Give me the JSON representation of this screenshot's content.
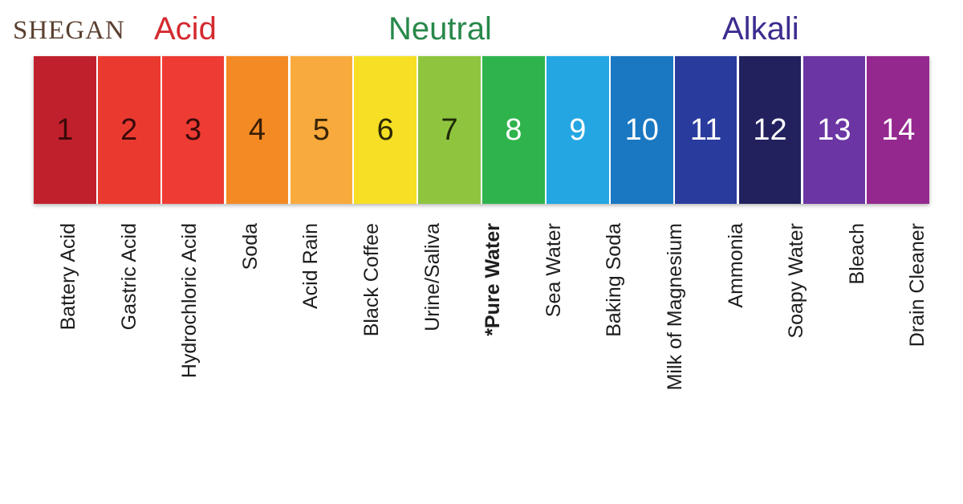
{
  "brand": {
    "name": "SHEGAN",
    "color": "#5a4030"
  },
  "headings": [
    {
      "id": "acid",
      "text": "Acid",
      "color": "#d42a2f"
    },
    {
      "id": "neutral",
      "text": "Neutral",
      "color": "#28884a"
    },
    {
      "id": "alkali",
      "text": "Alkali",
      "color": "#3b2d8f"
    }
  ],
  "scale": [
    {
      "ph": "1",
      "color": "#c0202c",
      "text_color": "#3a0a0a",
      "label": "Battery Acid",
      "emphasis": false
    },
    {
      "ph": "2",
      "color": "#ea3a30",
      "text_color": "#3a0a0a",
      "label": "Gastric Acid",
      "emphasis": false
    },
    {
      "ph": "3",
      "color": "#ee3b33",
      "text_color": "#3a0a0a",
      "label": "Hydrochloric Acid",
      "emphasis": false
    },
    {
      "ph": "4",
      "color": "#f48a24",
      "text_color": "#3a1e05",
      "label": "Soda",
      "emphasis": false
    },
    {
      "ph": "5",
      "color": "#f9aa3c",
      "text_color": "#3a2505",
      "label": "Acid Rain",
      "emphasis": false
    },
    {
      "ph": "6",
      "color": "#f6df24",
      "text_color": "#2e2a05",
      "label": "Black Coffee",
      "emphasis": false
    },
    {
      "ph": "7",
      "color": "#8fc43f",
      "text_color": "#1e2a08",
      "label": "Urine/Saliva",
      "emphasis": false
    },
    {
      "ph": "8",
      "color": "#2fb34c",
      "text_color": "#ffffff",
      "label": "*Pure Water",
      "emphasis": true
    },
    {
      "ph": "9",
      "color": "#23a6e2",
      "text_color": "#ffffff",
      "label": "Sea Water",
      "emphasis": false
    },
    {
      "ph": "10",
      "color": "#1a78c2",
      "text_color": "#ffffff",
      "label": "Baking Soda",
      "emphasis": false
    },
    {
      "ph": "11",
      "color": "#2a3b9e",
      "text_color": "#ffffff",
      "label": "Milk of Magnesium",
      "emphasis": false
    },
    {
      "ph": "12",
      "color": "#22215e",
      "text_color": "#ffffff",
      "label": "Ammonia",
      "emphasis": false
    },
    {
      "ph": "13",
      "color": "#6b35a3",
      "text_color": "#ffffff",
      "label": "Soapy Water",
      "emphasis": false
    },
    {
      "ph": "14",
      "color": "#94288f",
      "text_color": "#ffffff",
      "label": "Bleach",
      "emphasis": false
    }
  ],
  "extra_label": "Drain Cleaner"
}
